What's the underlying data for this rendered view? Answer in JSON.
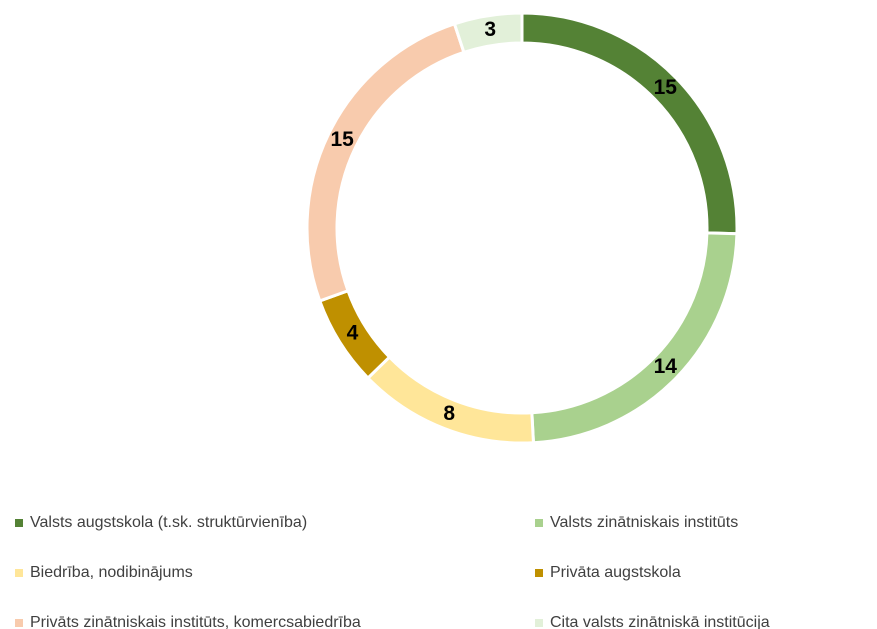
{
  "chart_data": {
    "type": "donut",
    "categories": [
      "Valsts augstskola (t.sk. struktūrvienība)",
      "Valsts zinātniskais institūts",
      "Biedrība, nodibinājums",
      "Privāta augstskola",
      "Privāts zinātniskais institūts, komercsabiedrība",
      "Cita valsts zinātniskā institūcija"
    ],
    "values": [
      15,
      14,
      8,
      4,
      15,
      3
    ],
    "colors": [
      "#548235",
      "#a9d18e",
      "#ffe699",
      "#bf9000",
      "#f8cbad",
      "#e2f0d9"
    ],
    "legend": "bottom"
  }
}
